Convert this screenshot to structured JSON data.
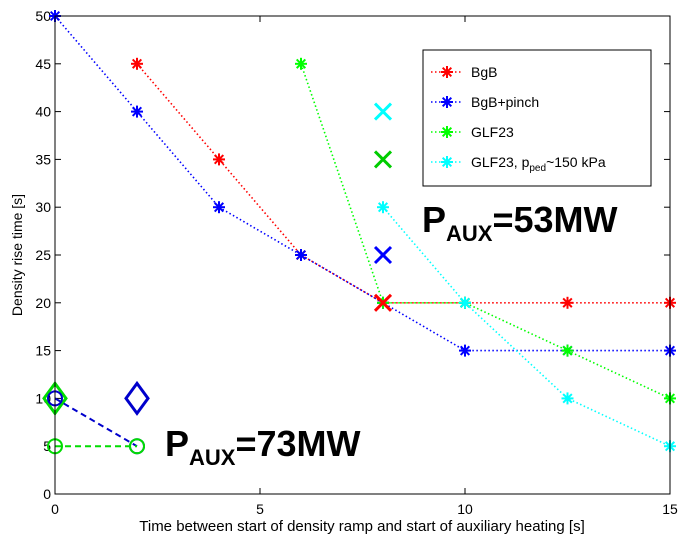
{
  "chart_data": {
    "type": "line",
    "title": "",
    "xlabel": "Time between start of density ramp and start of auxiliary heating [s]",
    "ylabel": "Density rise time [s]",
    "xlim": [
      0,
      15
    ],
    "ylim": [
      0,
      50
    ],
    "xticks": [
      "0",
      "5",
      "10",
      "15"
    ],
    "yticks": [
      "0",
      "5",
      "10",
      "15",
      "20",
      "25",
      "30",
      "35",
      "40",
      "45",
      "50"
    ],
    "grid": false,
    "legend_position": "top-right",
    "series": [
      {
        "key": "bgb",
        "name": "BgB",
        "color": "#ff0000",
        "x": [
          2,
          4,
          6,
          8,
          10,
          12.5,
          15
        ],
        "y": [
          45,
          35,
          25,
          20,
          20,
          20,
          20
        ]
      },
      {
        "key": "bgb_pinch",
        "name": "BgB+pinch",
        "color": "#0000ff",
        "x": [
          0,
          2,
          4,
          6,
          8,
          10,
          12.5,
          15
        ],
        "y": [
          50,
          40,
          30,
          25,
          20,
          15,
          15,
          15
        ]
      },
      {
        "key": "glf23",
        "name": "GLF23",
        "color": "#00ff00",
        "x": [
          6,
          8,
          10,
          12.5,
          15
        ],
        "y": [
          45,
          20,
          20,
          15,
          10
        ]
      },
      {
        "key": "glf23_ped",
        "name_prefix": "GLF23, p",
        "name_sub": "ped",
        "name_suffix": "~150 kPa",
        "color": "#00ffff",
        "x": [
          8,
          10,
          12.5,
          15
        ],
        "y": [
          30,
          20,
          10,
          5
        ]
      }
    ],
    "extra_markers": [
      {
        "key": "x-red",
        "shape": "x",
        "color": "#ff0000",
        "x": 8,
        "y": 20
      },
      {
        "key": "x-blue",
        "shape": "x",
        "color": "#0000ff",
        "x": 8,
        "y": 25
      },
      {
        "key": "x-green",
        "shape": "x",
        "color": "#00cc00",
        "x": 8,
        "y": 35
      },
      {
        "key": "x-cyan",
        "shape": "x",
        "color": "#00ffff",
        "x": 8,
        "y": 40
      },
      {
        "key": "diamond-green",
        "shape": "diamond",
        "color": "#00dd00",
        "x": 0,
        "y": 10
      },
      {
        "key": "diamond-blue",
        "shape": "diamond",
        "color": "#0000cc",
        "x": 2,
        "y": 10
      }
    ],
    "aux73_series": [
      {
        "key": "aux73-blue",
        "color": "#0000cc",
        "x": [
          0,
          2
        ],
        "y": [
          10,
          5
        ]
      },
      {
        "key": "aux73-green",
        "color": "#00dd00",
        "x": [
          0,
          2
        ],
        "y": [
          5,
          5
        ]
      }
    ],
    "annotations": [
      {
        "key": "p53",
        "main": "P",
        "sub": "AUX",
        "rest": "=53MW"
      },
      {
        "key": "p73",
        "main": "P",
        "sub": "AUX",
        "rest": "=73MW"
      }
    ]
  }
}
